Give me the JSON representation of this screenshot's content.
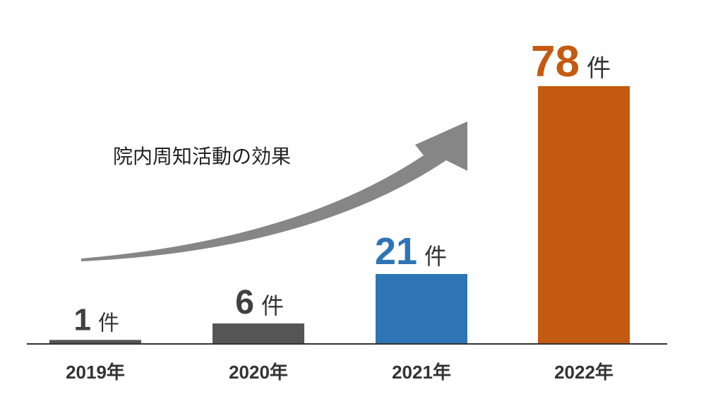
{
  "chart_data": {
    "type": "bar",
    "categories": [
      "2019年",
      "2020年",
      "2021年",
      "2022年"
    ],
    "values": [
      1,
      6,
      21,
      78
    ],
    "unit": "件",
    "ylim": [
      0,
      100
    ],
    "grid": false,
    "legend": "none",
    "colors": [
      "#555555",
      "#555555",
      "#2E75B6",
      "#C55A11"
    ],
    "label_colors": [
      "#404040",
      "#404040",
      "#2E75B6",
      "#C55A11"
    ],
    "annotation": "院内周知活動の効果"
  }
}
